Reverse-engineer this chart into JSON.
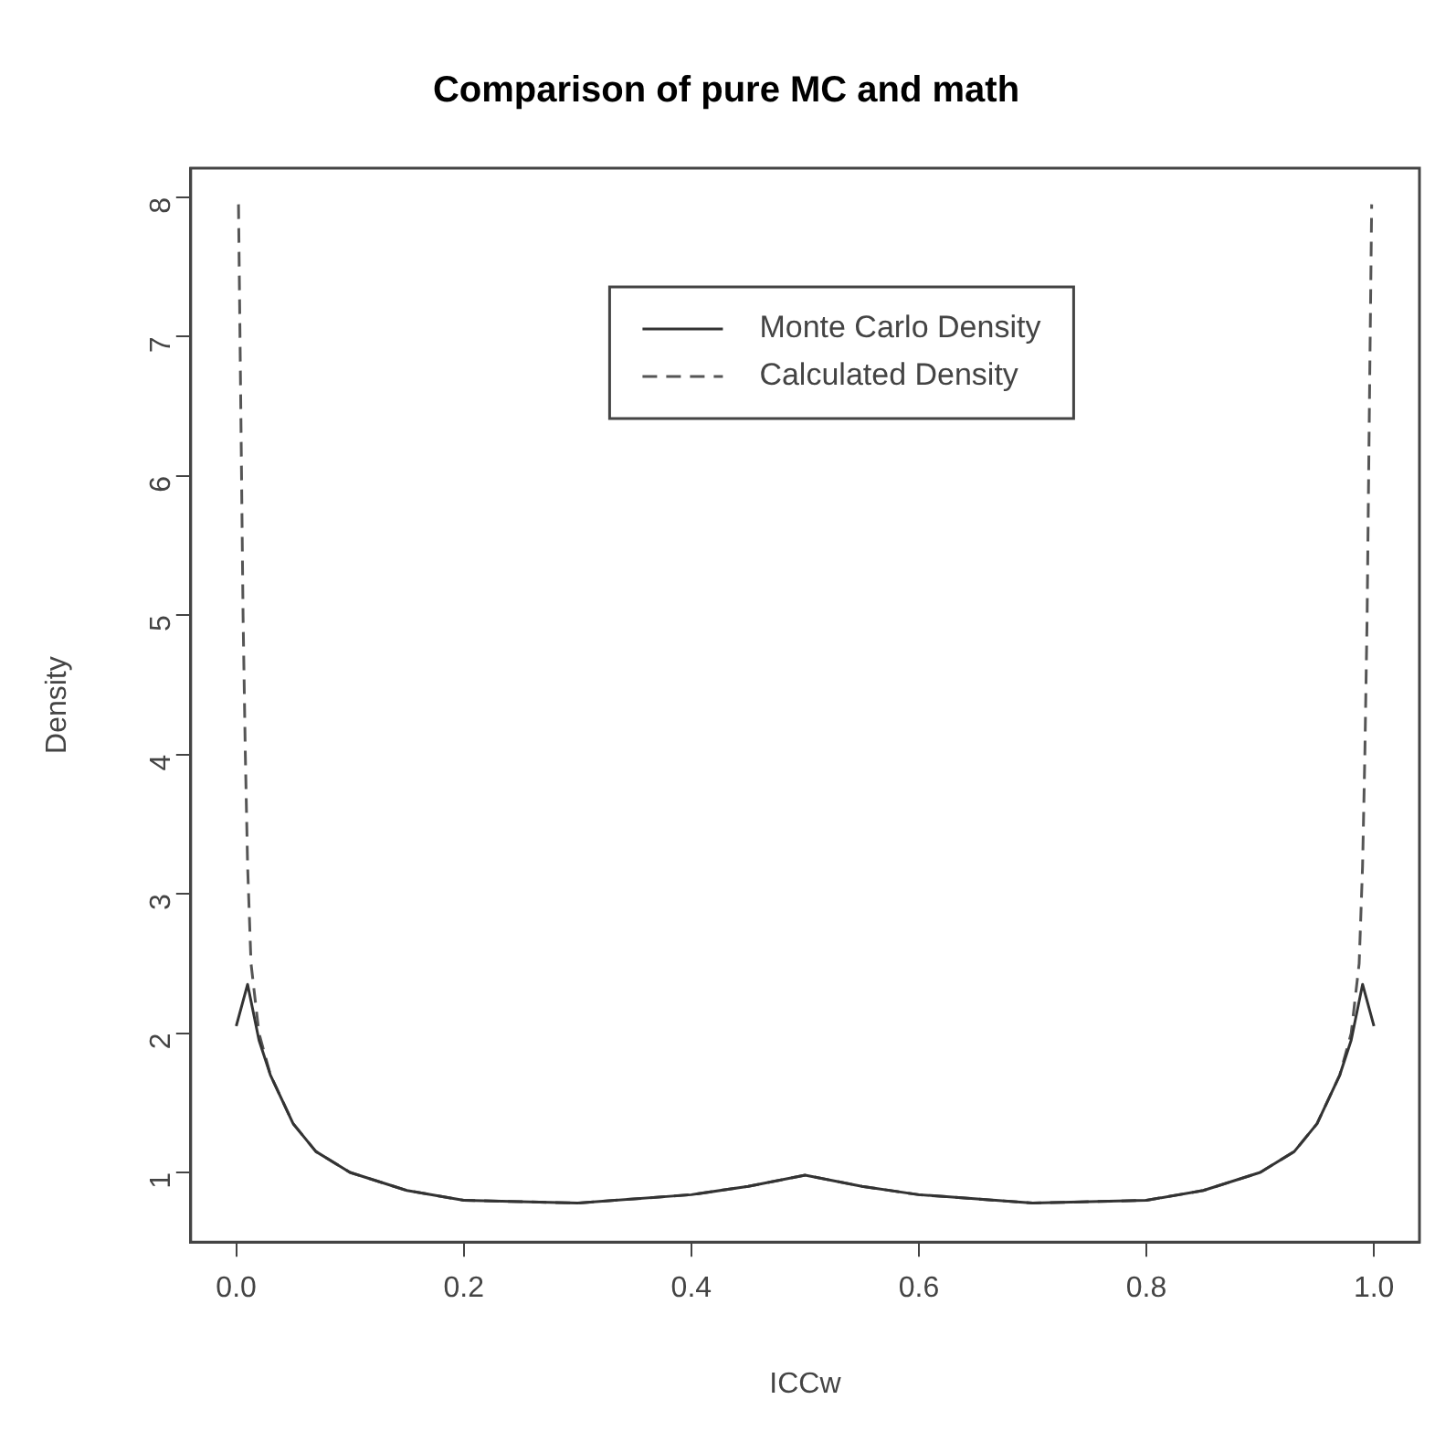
{
  "chart_data": {
    "type": "line",
    "title": "Comparison of pure MC and math",
    "xlabel": "ICCw",
    "ylabel": "Density",
    "series": [
      {
        "name": "Monte Carlo Density",
        "color": "#333333",
        "line_style": "solid",
        "x": [
          0,
          0.01,
          0.02,
          0.03,
          0.05,
          0.07,
          0.1,
          0.15,
          0.2,
          0.3,
          0.4,
          0.45,
          0.5,
          0.55,
          0.6,
          0.7,
          0.8,
          0.85,
          0.9,
          0.93,
          0.95,
          0.97,
          0.98,
          0.99,
          1
        ],
        "values": [
          2.05,
          2.35,
          1.95,
          1.7,
          1.35,
          1.15,
          1.0,
          0.87,
          0.8,
          0.78,
          0.84,
          0.9,
          0.98,
          0.9,
          0.84,
          0.78,
          0.8,
          0.87,
          1.0,
          1.15,
          1.35,
          1.7,
          1.95,
          2.35,
          2.05
        ]
      },
      {
        "name": "Calculated Density",
        "color": "#555555",
        "line_style": "dashed",
        "x": [
          0.002,
          0.004,
          0.006,
          0.008,
          0.01,
          0.013,
          0.02,
          0.03,
          0.05,
          0.07,
          0.1,
          0.15,
          0.2,
          0.3,
          0.4,
          0.45,
          0.5,
          0.55,
          0.6,
          0.7,
          0.8,
          0.85,
          0.9,
          0.93,
          0.95,
          0.97,
          0.98,
          0.987,
          0.99,
          0.992,
          0.994,
          0.996,
          0.998
        ],
        "values": [
          7.95,
          6.5,
          5.0,
          4.0,
          3.2,
          2.5,
          2.0,
          1.7,
          1.35,
          1.15,
          1.0,
          0.87,
          0.8,
          0.78,
          0.84,
          0.9,
          0.98,
          0.9,
          0.84,
          0.78,
          0.8,
          0.87,
          1.0,
          1.15,
          1.35,
          1.7,
          2.0,
          2.5,
          3.2,
          4.0,
          5.0,
          6.5,
          7.95
        ]
      }
    ],
    "xlim": [
      -0.04,
      1.04
    ],
    "xticks": [
      {
        "value": 0,
        "label": "0.0"
      },
      0.2,
      0.4,
      0.6,
      0.8,
      {
        "value": 1,
        "label": "1.0"
      }
    ],
    "ylim": [
      0.5,
      8.21
    ],
    "yticks": [
      1,
      2,
      3,
      4,
      5,
      6,
      7,
      8
    ],
    "grid": false,
    "legend": "top",
    "marker": "none"
  }
}
